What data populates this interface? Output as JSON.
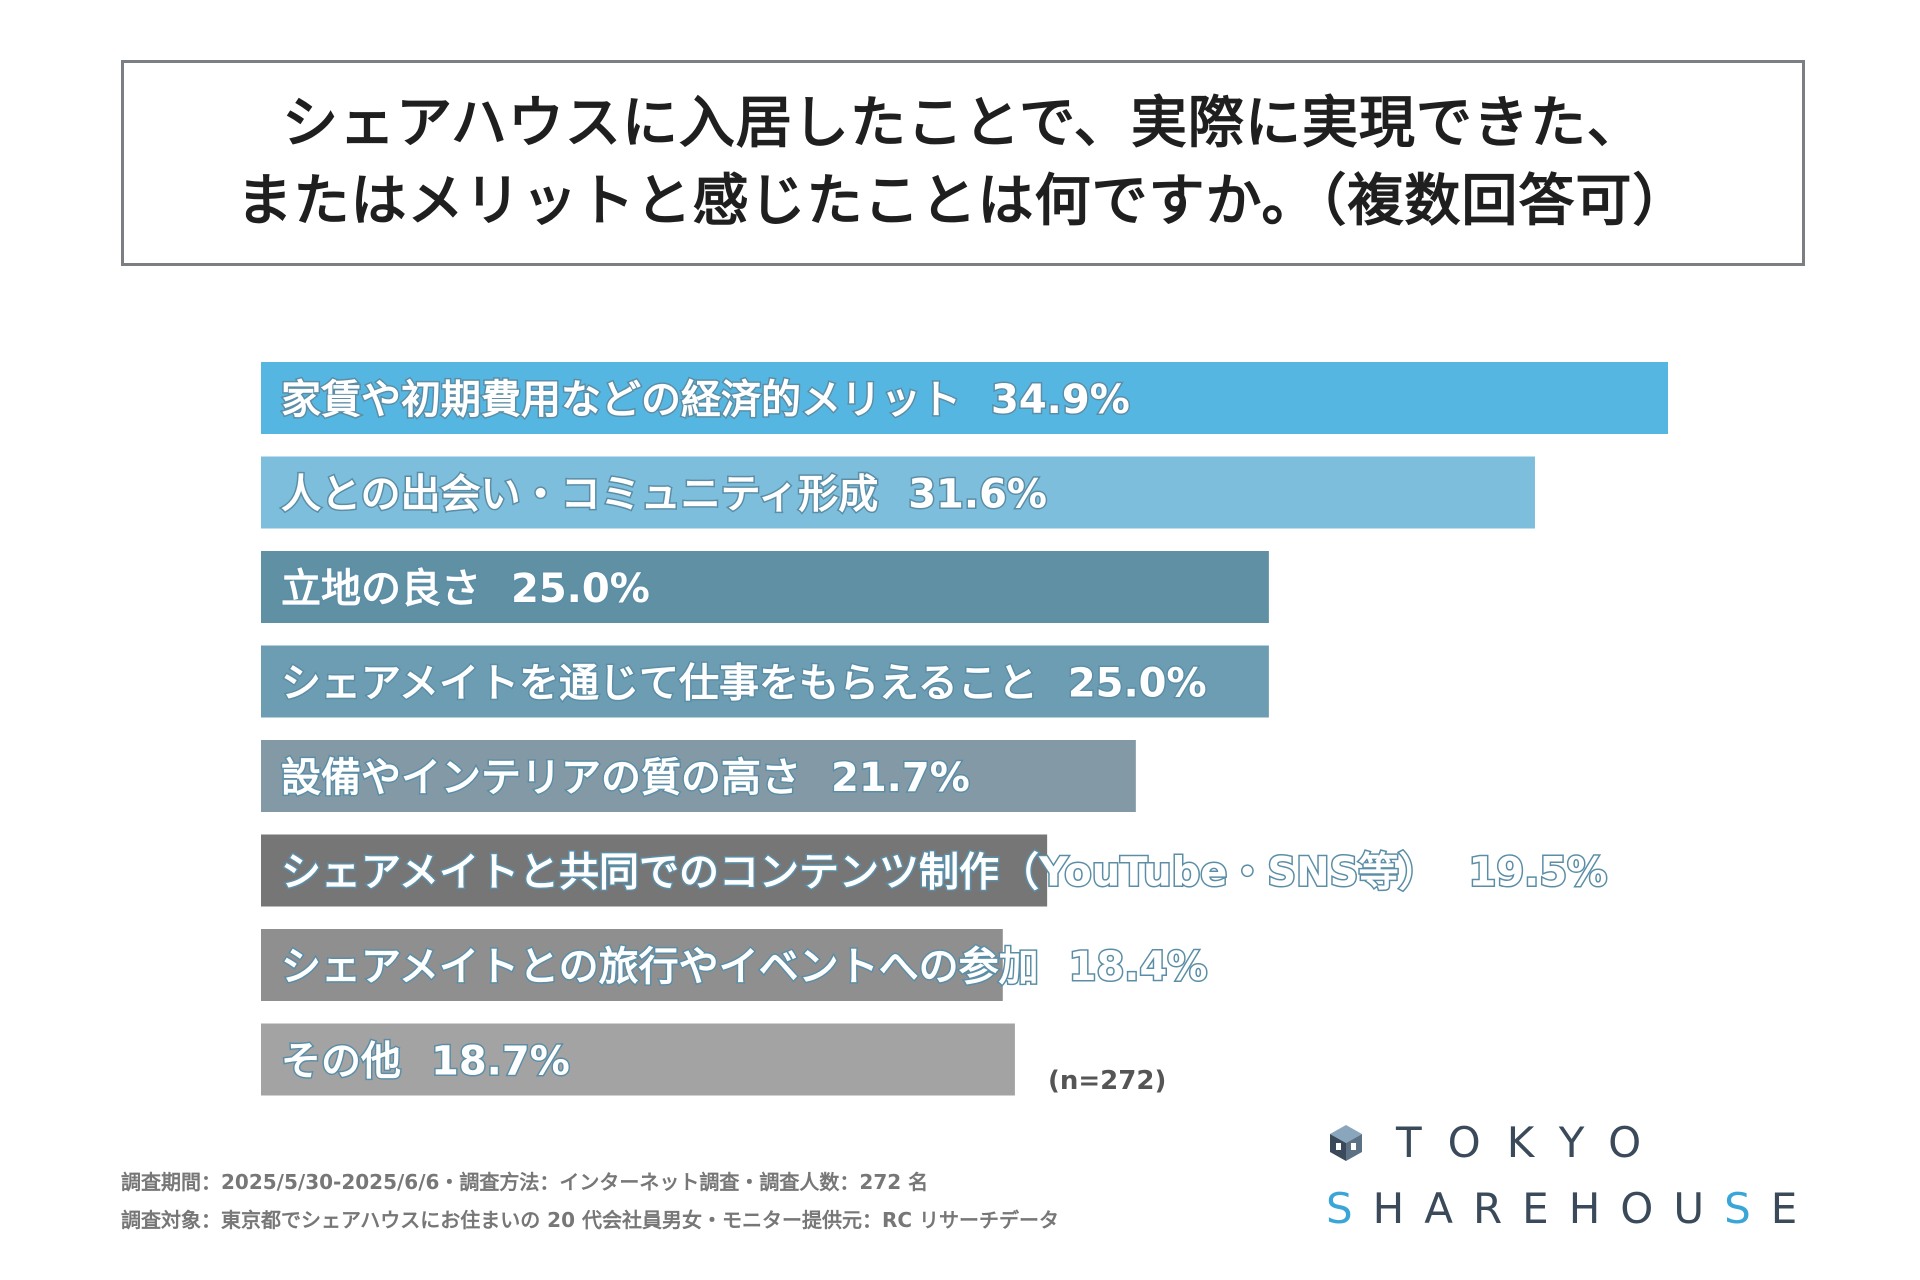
{
  "title": {
    "line1": "シェアハウスに入居したことで、実際に実現できた、",
    "line2": "またはメリットと感じたことは何ですか。（複数回答可）"
  },
  "chart_data": {
    "type": "bar",
    "orientation": "horizontal",
    "categories": [
      "家賃や初期費用などの経済的メリット",
      "人との出会い・コミュニティ形成",
      "立地の良さ",
      "シェアメイトを通じて仕事をもらえること",
      "設備やインテリアの質の高さ",
      "シェアメイトと共同でのコンテンツ制作（YouTube・SNS等）",
      "シェアメイトとの旅行やイベントへの参加",
      "その他"
    ],
    "values": [
      34.9,
      31.6,
      25.0,
      25.0,
      21.7,
      19.5,
      18.4,
      18.7
    ],
    "value_labels": [
      "34.9%",
      "31.6%",
      "25.0%",
      "25.0%",
      "21.7%",
      "19.5%",
      "18.4%",
      "18.7%"
    ],
    "colors": [
      "#56b6e2",
      "#7dbedc",
      "#5f90a4",
      "#6d9db2",
      "#839aa6",
      "#767676",
      "#8f8f8f",
      "#a3a3a3"
    ],
    "unit": "%",
    "xlim": [
      0,
      34.9
    ],
    "grid": false,
    "legend": "none"
  },
  "sample_note": "(n=272)",
  "footnotes": {
    "line1": "調査期間：2025/5/30-2025/6/6・調査方法：インターネット調査・調査人数：272 名",
    "line2": "調査対象：東京都でシェアハウスにお住まいの 20 代会社員男女・モニター提供元：RC リサーチデータ"
  },
  "logo": {
    "word1": "TOKYO",
    "word2_a": "SHAREHOU",
    "word2_b": "S",
    "word2_c": "E",
    "icon": "cube-icon",
    "accent_color": "#3aa6d8"
  }
}
